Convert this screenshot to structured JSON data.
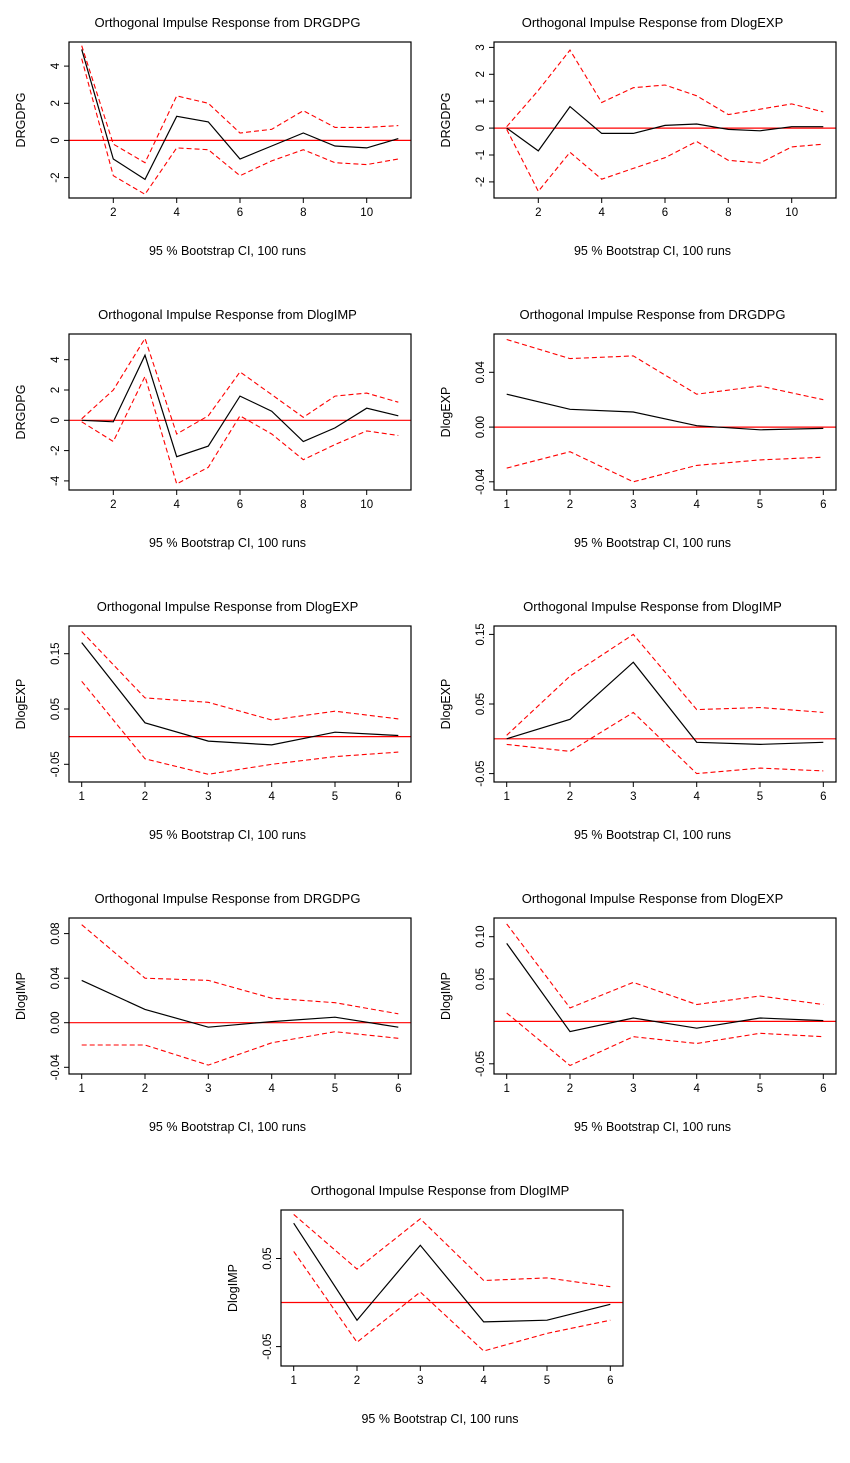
{
  "colors": {
    "irf_line": "#000000",
    "ci_line": "#ff0000",
    "zero_line": "#ff0000",
    "box": "#000000",
    "background": "#ffffff"
  },
  "chart_data": [
    {
      "type": "line",
      "title": "Orthogonal Impulse Response from DRGDPG",
      "ylabel": "DRGDPG",
      "caption": "95 % Bootstrap CI, 100 runs",
      "x": [
        1,
        2,
        3,
        4,
        5,
        6,
        7,
        8,
        9,
        10,
        11
      ],
      "series": [
        {
          "name": "irf",
          "values": [
            4.9,
            -1.0,
            -2.1,
            1.3,
            1.0,
            -1.0,
            -0.3,
            0.4,
            -0.3,
            -0.4,
            0.1
          ]
        },
        {
          "name": "ci_upper",
          "values": [
            5.1,
            -0.2,
            -1.2,
            2.4,
            2.0,
            0.4,
            0.6,
            1.6,
            0.7,
            0.7,
            0.8
          ]
        },
        {
          "name": "ci_lower",
          "values": [
            4.4,
            -1.9,
            -2.9,
            -0.4,
            -0.5,
            -1.9,
            -1.1,
            -0.5,
            -1.2,
            -1.3,
            -1.0
          ]
        }
      ],
      "xticks": [
        2,
        4,
        6,
        8,
        10
      ],
      "xtick_labels": [
        "2",
        "4",
        "6",
        "8",
        "10"
      ],
      "yticks": [
        -2,
        0,
        2,
        4
      ],
      "ytick_labels": [
        "-2",
        "0",
        "2",
        "4"
      ],
      "xlim": [
        0.6,
        11.4
      ],
      "ylim": [
        -3.1,
        5.3
      ],
      "zero_line": 0,
      "grid": false,
      "legend": "none"
    },
    {
      "type": "line",
      "title": "Orthogonal Impulse Response from DlogEXP",
      "ylabel": "DRGDPG",
      "caption": "95 % Bootstrap CI, 100 runs",
      "x": [
        1,
        2,
        3,
        4,
        5,
        6,
        7,
        8,
        9,
        10,
        11
      ],
      "series": [
        {
          "name": "irf",
          "values": [
            0.0,
            -0.85,
            0.8,
            -0.2,
            -0.2,
            0.1,
            0.15,
            -0.05,
            -0.1,
            0.05,
            0.05
          ]
        },
        {
          "name": "ci_upper",
          "values": [
            0.05,
            1.4,
            2.9,
            0.95,
            1.5,
            1.6,
            1.2,
            0.5,
            0.7,
            0.9,
            0.6
          ]
        },
        {
          "name": "ci_lower",
          "values": [
            -0.05,
            -2.35,
            -0.9,
            -1.9,
            -1.5,
            -1.1,
            -0.5,
            -1.2,
            -1.3,
            -0.7,
            -0.6
          ]
        }
      ],
      "xticks": [
        2,
        4,
        6,
        8,
        10
      ],
      "xtick_labels": [
        "2",
        "4",
        "6",
        "8",
        "10"
      ],
      "yticks": [
        -2,
        -1,
        0,
        1,
        2,
        3
      ],
      "ytick_labels": [
        "-2",
        "-1",
        "0",
        "1",
        "2",
        "3"
      ],
      "xlim": [
        0.6,
        11.4
      ],
      "ylim": [
        -2.6,
        3.2
      ],
      "zero_line": 0,
      "grid": false,
      "legend": "none"
    },
    {
      "type": "line",
      "title": "Orthogonal Impulse Response from DlogIMP",
      "ylabel": "DRGDPG",
      "caption": "95 % Bootstrap CI, 100 runs",
      "x": [
        1,
        2,
        3,
        4,
        5,
        6,
        7,
        8,
        9,
        10,
        11
      ],
      "series": [
        {
          "name": "irf",
          "values": [
            0.0,
            -0.1,
            4.3,
            -2.4,
            -1.7,
            1.6,
            0.6,
            -1.4,
            -0.5,
            0.8,
            0.3
          ]
        },
        {
          "name": "ci_upper",
          "values": [
            0.1,
            2.0,
            5.4,
            -0.9,
            0.3,
            3.2,
            1.7,
            0.2,
            1.6,
            1.8,
            1.2
          ]
        },
        {
          "name": "ci_lower",
          "values": [
            -0.1,
            -1.4,
            2.9,
            -4.2,
            -3.1,
            0.3,
            -0.9,
            -2.6,
            -1.6,
            -0.7,
            -1.0
          ]
        }
      ],
      "xticks": [
        2,
        4,
        6,
        8,
        10
      ],
      "xtick_labels": [
        "2",
        "4",
        "6",
        "8",
        "10"
      ],
      "yticks": [
        -4,
        -2,
        0,
        2,
        4
      ],
      "ytick_labels": [
        "-4",
        "-2",
        "0",
        "2",
        "4"
      ],
      "xlim": [
        0.6,
        11.4
      ],
      "ylim": [
        -4.6,
        5.7
      ],
      "zero_line": 0,
      "grid": false,
      "legend": "none"
    },
    {
      "type": "line",
      "title": "Orthogonal Impulse Response from DRGDPG",
      "ylabel": "DlogEXP",
      "caption": "95 % Bootstrap CI, 100 runs",
      "x": [
        1,
        2,
        3,
        4,
        5,
        6
      ],
      "series": [
        {
          "name": "irf",
          "values": [
            0.024,
            0.013,
            0.011,
            0.001,
            -0.002,
            -0.001
          ]
        },
        {
          "name": "ci_upper",
          "values": [
            0.064,
            0.05,
            0.052,
            0.024,
            0.03,
            0.02
          ]
        },
        {
          "name": "ci_lower",
          "values": [
            -0.03,
            -0.018,
            -0.04,
            -0.028,
            -0.024,
            -0.022
          ]
        }
      ],
      "xticks": [
        1,
        2,
        3,
        4,
        5,
        6
      ],
      "xtick_labels": [
        "1",
        "2",
        "3",
        "4",
        "5",
        "6"
      ],
      "yticks": [
        -0.04,
        0.0,
        0.04
      ],
      "ytick_labels": [
        "-0.04",
        "0.00",
        "0.04"
      ],
      "xlim": [
        0.8,
        6.2
      ],
      "ylim": [
        -0.046,
        0.068
      ],
      "zero_line": 0,
      "grid": false,
      "legend": "none"
    },
    {
      "type": "line",
      "title": "Orthogonal Impulse Response from DlogEXP",
      "ylabel": "DlogEXP",
      "caption": "95 % Bootstrap CI, 100 runs",
      "x": [
        1,
        2,
        3,
        4,
        5,
        6
      ],
      "series": [
        {
          "name": "irf",
          "values": [
            0.17,
            0.025,
            -0.008,
            -0.015,
            0.008,
            0.002
          ]
        },
        {
          "name": "ci_upper",
          "values": [
            0.19,
            0.07,
            0.062,
            0.03,
            0.046,
            0.032
          ]
        },
        {
          "name": "ci_lower",
          "values": [
            0.1,
            -0.04,
            -0.068,
            -0.05,
            -0.036,
            -0.028
          ]
        }
      ],
      "xticks": [
        1,
        2,
        3,
        4,
        5,
        6
      ],
      "xtick_labels": [
        "1",
        "2",
        "3",
        "4",
        "5",
        "6"
      ],
      "yticks": [
        -0.05,
        0.05,
        0.15
      ],
      "ytick_labels": [
        "-0.05",
        "0.05",
        "0.15"
      ],
      "xlim": [
        0.8,
        6.2
      ],
      "ylim": [
        -0.082,
        0.2
      ],
      "zero_line": 0,
      "grid": false,
      "legend": "none"
    },
    {
      "type": "line",
      "title": "Orthogonal Impulse Response from DlogIMP",
      "ylabel": "DlogEXP",
      "caption": "95 % Bootstrap CI, 100 runs",
      "x": [
        1,
        2,
        3,
        4,
        5,
        6
      ],
      "series": [
        {
          "name": "irf",
          "values": [
            0.0,
            0.028,
            0.11,
            -0.005,
            -0.008,
            -0.005
          ]
        },
        {
          "name": "ci_upper",
          "values": [
            0.005,
            0.09,
            0.15,
            0.042,
            0.045,
            0.038
          ]
        },
        {
          "name": "ci_lower",
          "values": [
            -0.008,
            -0.018,
            0.038,
            -0.05,
            -0.042,
            -0.046
          ]
        }
      ],
      "xticks": [
        1,
        2,
        3,
        4,
        5,
        6
      ],
      "xtick_labels": [
        "1",
        "2",
        "3",
        "4",
        "5",
        "6"
      ],
      "yticks": [
        -0.05,
        0.05,
        0.15
      ],
      "ytick_labels": [
        "-0.05",
        "0.05",
        "0.15"
      ],
      "xlim": [
        0.8,
        6.2
      ],
      "ylim": [
        -0.062,
        0.162
      ],
      "zero_line": 0,
      "grid": false,
      "legend": "none"
    },
    {
      "type": "line",
      "title": "Orthogonal Impulse Response from DRGDPG",
      "ylabel": "DlogIMP",
      "caption": "95 % Bootstrap CI, 100 runs",
      "x": [
        1,
        2,
        3,
        4,
        5,
        6
      ],
      "series": [
        {
          "name": "irf",
          "values": [
            0.038,
            0.012,
            -0.004,
            0.001,
            0.005,
            -0.004
          ]
        },
        {
          "name": "ci_upper",
          "values": [
            0.088,
            0.04,
            0.038,
            0.022,
            0.018,
            0.008
          ]
        },
        {
          "name": "ci_lower",
          "values": [
            -0.02,
            -0.02,
            -0.038,
            -0.018,
            -0.008,
            -0.014
          ]
        }
      ],
      "xticks": [
        1,
        2,
        3,
        4,
        5,
        6
      ],
      "xtick_labels": [
        "1",
        "2",
        "3",
        "4",
        "5",
        "6"
      ],
      "yticks": [
        -0.04,
        0.0,
        0.04,
        0.08
      ],
      "ytick_labels": [
        "-0.04",
        "0.00",
        "0.04",
        "0.08"
      ],
      "xlim": [
        0.8,
        6.2
      ],
      "ylim": [
        -0.046,
        0.094
      ],
      "zero_line": 0,
      "grid": false,
      "legend": "none"
    },
    {
      "type": "line",
      "title": "Orthogonal Impulse Response from DlogEXP",
      "ylabel": "DlogIMP",
      "caption": "95 % Bootstrap CI, 100 runs",
      "x": [
        1,
        2,
        3,
        4,
        5,
        6
      ],
      "series": [
        {
          "name": "irf",
          "values": [
            0.092,
            -0.012,
            0.004,
            -0.008,
            0.004,
            0.001
          ]
        },
        {
          "name": "ci_upper",
          "values": [
            0.115,
            0.016,
            0.046,
            0.02,
            0.03,
            0.02
          ]
        },
        {
          "name": "ci_lower",
          "values": [
            0.01,
            -0.052,
            -0.018,
            -0.026,
            -0.014,
            -0.018
          ]
        }
      ],
      "xticks": [
        1,
        2,
        3,
        4,
        5,
        6
      ],
      "xtick_labels": [
        "1",
        "2",
        "3",
        "4",
        "5",
        "6"
      ],
      "yticks": [
        -0.05,
        0.05,
        0.1
      ],
      "ytick_labels": [
        "-0.05",
        "0.05",
        "0.10"
      ],
      "xlim": [
        0.8,
        6.2
      ],
      "ylim": [
        -0.062,
        0.122
      ],
      "zero_line": 0,
      "grid": false,
      "legend": "none"
    },
    {
      "type": "line",
      "title": "Orthogonal Impulse Response from DlogIMP",
      "ylabel": "DlogIMP",
      "caption": "95 % Bootstrap CI, 100 runs",
      "x": [
        1,
        2,
        3,
        4,
        5,
        6
      ],
      "series": [
        {
          "name": "irf",
          "values": [
            0.09,
            -0.02,
            0.065,
            -0.022,
            -0.02,
            -0.002
          ]
        },
        {
          "name": "ci_upper",
          "values": [
            0.1,
            0.038,
            0.095,
            0.025,
            0.028,
            0.018
          ]
        },
        {
          "name": "ci_lower",
          "values": [
            0.058,
            -0.045,
            0.012,
            -0.055,
            -0.035,
            -0.02
          ]
        }
      ],
      "xticks": [
        1,
        2,
        3,
        4,
        5,
        6
      ],
      "xtick_labels": [
        "1",
        "2",
        "3",
        "4",
        "5",
        "6"
      ],
      "yticks": [
        -0.05,
        0.05
      ],
      "ytick_labels": [
        "-0.05",
        "0.05"
      ],
      "xlim": [
        0.8,
        6.2
      ],
      "ylim": [
        -0.072,
        0.105
      ],
      "zero_line": 0,
      "grid": false,
      "legend": "none"
    }
  ]
}
